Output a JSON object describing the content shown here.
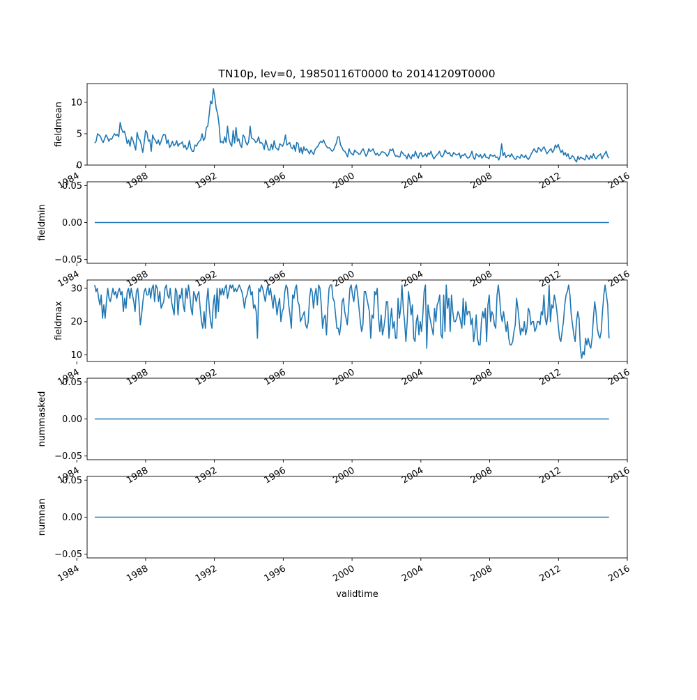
{
  "figure": {
    "title": "TN10p, lev=0, 19850116T0000 to 20141209T0000",
    "line_color": "#1f77b4"
  },
  "chart_data": [
    {
      "type": "line",
      "title": "TN10p, lev=0, 19850116T0000 to 20141209T0000",
      "xlabel": "",
      "ylabel": "fieldmean",
      "x_range": [
        "1985-01-16",
        "2014-12-09"
      ],
      "xlim": [
        1984.6,
        2016.0
      ],
      "ylim": [
        0,
        13
      ],
      "yticks": [
        0,
        5,
        10
      ],
      "ytick_labels": [
        "0",
        "5",
        "10"
      ],
      "xticks": [
        1984,
        1988,
        1992,
        1996,
        2000,
        2004,
        2008,
        2012,
        2016
      ],
      "xtick_labels": [
        "1984",
        "1988",
        "1992",
        "1996",
        "2000",
        "2004",
        "2008",
        "2012",
        "2016"
      ],
      "grid": false,
      "series": [
        {
          "values": [
            3.5,
            3.8,
            5.0,
            4.8,
            4.6,
            4.0,
            3.6,
            4.2,
            4.8,
            4.4,
            3.8,
            4.2,
            4.1,
            4.6,
            5.0,
            4.7,
            4.9,
            4.5,
            6.8,
            5.8,
            5.2,
            5.4,
            4.6,
            3.4,
            4.0,
            3.0,
            4.5,
            4.0,
            3.2,
            2.4,
            5.2,
            4.2,
            4.0,
            3.2,
            2.0,
            3.6,
            5.5,
            5.2,
            3.8,
            4.0,
            2.2,
            4.8,
            4.2,
            3.9,
            3.4,
            4.0,
            3.2,
            3.8,
            4.6,
            4.9,
            4.8,
            3.4,
            4.0,
            2.8,
            3.2,
            3.8,
            3.1,
            3.3,
            3.9,
            3.0,
            3.4,
            3.4,
            3.7,
            2.8,
            3.2,
            2.5,
            2.8,
            3.9,
            2.7,
            2.2,
            2.2,
            3.2,
            3.0,
            3.5,
            3.8,
            4.0,
            5.0,
            3.9,
            4.3,
            6.0,
            6.2,
            8.0,
            10.2,
            9.8,
            12.2,
            10.8,
            9.0,
            8.2,
            6.5,
            3.6,
            3.8,
            3.5,
            4.5,
            3.6,
            6.2,
            4.2,
            3.4,
            3.0,
            5.5,
            3.5,
            6.0,
            3.8,
            4.2,
            3.2,
            2.8,
            4.8,
            4.5,
            3.6,
            3.2,
            3.8,
            6.2,
            4.3,
            4.2,
            4.0,
            3.6,
            3.8,
            4.5,
            3.5,
            3.6,
            3.3,
            2.5,
            4.0,
            3.2,
            2.4,
            2.4,
            3.3,
            2.5,
            3.9,
            2.8,
            2.6,
            2.4,
            3.4,
            3.2,
            3.0,
            3.6,
            4.8,
            3.2,
            3.4,
            3.6,
            2.8,
            2.6,
            3.2,
            2.2,
            3.6,
            3.4,
            2.0,
            2.8,
            1.8,
            2.9,
            2.3,
            2.6,
            2.2,
            1.8,
            2.4,
            2.0,
            1.7,
            2.5,
            2.8,
            3.0,
            3.5,
            3.8,
            3.6,
            4.0,
            3.4,
            3.0,
            2.7,
            2.8,
            2.5,
            2.2,
            2.4,
            3.0,
            3.5,
            4.5,
            4.5,
            3.2,
            2.8,
            2.3,
            2.2,
            1.8,
            1.3,
            2.6,
            2.0,
            1.8,
            1.6,
            2.4,
            2.1,
            2.0,
            1.7,
            1.8,
            2.3,
            2.6,
            2.0,
            1.4,
            1.8,
            2.6,
            2.2,
            2.3,
            2.6,
            2.0,
            1.6,
            1.9,
            1.5,
            1.7,
            2.1,
            2.1,
            2.0,
            1.8,
            1.4,
            1.7,
            2.5,
            2.3,
            2.6,
            1.8,
            1.4,
            1.5,
            1.3,
            1.3,
            2.2,
            1.9,
            1.6,
            1.5,
            1.0,
            1.8,
            1.3,
            1.0,
            1.7,
            1.4,
            2.2,
            1.5,
            1.1,
            1.8,
            2.0,
            1.3,
            1.5,
            1.8,
            1.3,
            1.9,
            1.7,
            2.2,
            1.5,
            1.0,
            1.3,
            1.6,
            1.8,
            2.2,
            1.5,
            1.3,
            1.7,
            2.4,
            2.0,
            1.8,
            2.0,
            1.5,
            1.4,
            2.0,
            1.8,
            1.6,
            1.7,
            1.9,
            1.1,
            1.6,
            1.5,
            1.8,
            1.4,
            1.1,
            1.2,
            1.6,
            2.2,
            1.2,
            0.9,
            1.8,
            1.6,
            1.3,
            1.7,
            1.1,
            1.4,
            1.8,
            1.2,
            1.2,
            1.0,
            1.7,
            1.5,
            1.4,
            1.6,
            1.2,
            1.3,
            0.8,
            1.5,
            3.4,
            1.5,
            2.0,
            1.2,
            1.5,
            1.6,
            1.3,
            1.8,
            1.4,
            1.0,
            0.9,
            1.4,
            1.3,
            1.1,
            1.7,
            1.4,
            1.2,
            1.6,
            1.1,
            0.9,
            1.3,
            1.8,
            2.2,
            2.6,
            2.2,
            2.0,
            2.8,
            2.6,
            2.2,
            2.6,
            2.9,
            2.4,
            1.8,
            2.1,
            2.4,
            2.6,
            2.0,
            2.4,
            3.2,
            2.8,
            3.3,
            2.6,
            2.0,
            2.4,
            1.6,
            2.0,
            1.4,
            1.8,
            1.0,
            1.1,
            1.5,
            1.3,
            0.8,
            0.5,
            1.4,
            0.9,
            1.3,
            1.1,
            1.0,
            0.8,
            1.6,
            1.2,
            0.9,
            1.5,
            1.1,
            1.8,
            1.2,
            1.0,
            1.4,
            1.6,
            1.8,
            1.0,
            1.5,
            1.8,
            2.2,
            1.4,
            1.1
          ]
        }
      ]
    },
    {
      "type": "line",
      "xlabel": "",
      "ylabel": "fieldmin",
      "x_range": [
        "1985-01-16",
        "2014-12-09"
      ],
      "xlim": [
        1984.6,
        2016.0
      ],
      "ylim": [
        -0.055,
        0.055
      ],
      "yticks": [
        -0.05,
        0.0,
        0.05
      ],
      "ytick_labels": [
        "−0.05",
        "0.00",
        "0.05"
      ],
      "xticks": [
        1984,
        1988,
        1992,
        1996,
        2000,
        2004,
        2008,
        2012,
        2016
      ],
      "xtick_labels": [
        "1984",
        "1988",
        "1992",
        "1996",
        "2000",
        "2004",
        "2008",
        "2012",
        "2016"
      ],
      "grid": false,
      "series": [
        {
          "values": [
            0,
            0
          ]
        }
      ]
    },
    {
      "type": "line",
      "xlabel": "",
      "ylabel": "fieldmax",
      "x_range": [
        "1985-01-16",
        "2014-12-09"
      ],
      "xlim": [
        1984.6,
        2016.0
      ],
      "ylim": [
        8.0,
        32.5
      ],
      "yticks": [
        10,
        20,
        30
      ],
      "ytick_labels": [
        "10",
        "20",
        "30"
      ],
      "xticks": [
        1984,
        1988,
        1992,
        1996,
        2000,
        2004,
        2008,
        2012,
        2016
      ],
      "xtick_labels": [
        "1984",
        "1988",
        "1992",
        "1996",
        "2000",
        "2004",
        "2008",
        "2012",
        "2016"
      ],
      "grid": false,
      "series": [
        {
          "values": [
            31,
            29,
            30,
            27,
            25,
            28,
            21,
            25,
            21,
            26,
            30,
            27,
            26,
            28,
            30,
            28,
            29,
            27,
            29,
            30,
            28,
            29,
            23,
            27,
            24,
            29,
            30,
            27,
            30,
            28,
            26,
            23,
            29,
            30,
            26,
            19,
            22,
            26,
            29,
            30,
            28,
            28,
            30,
            27,
            30,
            31,
            26,
            31,
            30,
            26,
            29,
            24,
            25,
            26,
            30,
            31,
            28,
            27,
            30,
            26,
            24,
            22,
            30,
            29,
            22,
            28,
            27,
            30,
            25,
            23,
            30,
            27,
            31,
            28,
            24,
            22,
            29,
            28,
            26,
            28,
            29,
            24,
            20,
            18,
            23,
            18,
            26,
            30,
            24,
            20,
            18,
            25,
            28,
            21,
            30,
            23,
            30,
            28,
            30,
            28,
            30,
            31,
            27,
            29,
            31,
            30,
            31,
            29,
            30,
            29,
            30,
            31,
            30,
            29,
            27,
            24,
            27,
            28,
            30,
            31,
            28,
            29,
            24,
            25,
            23,
            15,
            30,
            29,
            31,
            30,
            28,
            26,
            29,
            31,
            28,
            30,
            27,
            24,
            28,
            26,
            22,
            25,
            27,
            20,
            23,
            24,
            29,
            31,
            30,
            25,
            22,
            18,
            28,
            27,
            30,
            31,
            26,
            25,
            20,
            21,
            22,
            23,
            19,
            18,
            20,
            27,
            30,
            29,
            24,
            28,
            30,
            25,
            31,
            30,
            25,
            18,
            21,
            22,
            16,
            24,
            30,
            31,
            31,
            27,
            26,
            22,
            18,
            18,
            16,
            19,
            26,
            27,
            23,
            21,
            19,
            24,
            30,
            31,
            28,
            26,
            30,
            31,
            28,
            24,
            20,
            17,
            19,
            29,
            29,
            27,
            25,
            23,
            15,
            22,
            21,
            29,
            28,
            30,
            21,
            17,
            22,
            16,
            18,
            21,
            26,
            26,
            15,
            20,
            24,
            18,
            20,
            15,
            15,
            27,
            21,
            24,
            31,
            24,
            20,
            14,
            20,
            29,
            26,
            22,
            25,
            15,
            14,
            20,
            22,
            16,
            20,
            17,
            22,
            29,
            31,
            12,
            25,
            22,
            20,
            18,
            16,
            24,
            20,
            25,
            26,
            28,
            16,
            15,
            28,
            17,
            31,
            24,
            27,
            17,
            28,
            23,
            20,
            20,
            21,
            23,
            22,
            20,
            18,
            27,
            19,
            26,
            22,
            23,
            23,
            19,
            21,
            14,
            17,
            22,
            15,
            13,
            13,
            20,
            23,
            21,
            24,
            14,
            25,
            28,
            20,
            23,
            22,
            19,
            18,
            28,
            31,
            27,
            22,
            20,
            23,
            20,
            17,
            20,
            15,
            13,
            13,
            14,
            17,
            19,
            27,
            24,
            20,
            16,
            18,
            17,
            20,
            16,
            18,
            24,
            23,
            19,
            20,
            20,
            17,
            18,
            20,
            20,
            19,
            23,
            22,
            28,
            21,
            19,
            22,
            31,
            20,
            25,
            24,
            28,
            26,
            23,
            19,
            15,
            14,
            17,
            20,
            25,
            28,
            29,
            31,
            28,
            22,
            19,
            16,
            14,
            20,
            23,
            21,
            12,
            9,
            11,
            10,
            15,
            13,
            15,
            13,
            12,
            15,
            21,
            26,
            23,
            18,
            16,
            15,
            17,
            23,
            28,
            31,
            28,
            25,
            15
          ]
        }
      ]
    },
    {
      "type": "line",
      "xlabel": "",
      "ylabel": "nummasked",
      "x_range": [
        "1985-01-16",
        "2014-12-09"
      ],
      "xlim": [
        1984.6,
        2016.0
      ],
      "ylim": [
        -0.055,
        0.055
      ],
      "yticks": [
        -0.05,
        0.0,
        0.05
      ],
      "ytick_labels": [
        "−0.05",
        "0.00",
        "0.05"
      ],
      "xticks": [
        1984,
        1988,
        1992,
        1996,
        2000,
        2004,
        2008,
        2012,
        2016
      ],
      "xtick_labels": [
        "1984",
        "1988",
        "1992",
        "1996",
        "2000",
        "2004",
        "2008",
        "2012",
        "2016"
      ],
      "grid": false,
      "series": [
        {
          "values": [
            0,
            0
          ]
        }
      ]
    },
    {
      "type": "line",
      "xlabel": "validtime",
      "ylabel": "numnan",
      "x_range": [
        "1985-01-16",
        "2014-12-09"
      ],
      "xlim": [
        1984.6,
        2016.0
      ],
      "ylim": [
        -0.055,
        0.055
      ],
      "yticks": [
        -0.05,
        0.0,
        0.05
      ],
      "ytick_labels": [
        "−0.05",
        "0.00",
        "0.05"
      ],
      "xticks": [
        1984,
        1988,
        1992,
        1996,
        2000,
        2004,
        2008,
        2012,
        2016
      ],
      "xtick_labels": [
        "1984",
        "1988",
        "1992",
        "1996",
        "2000",
        "2004",
        "2008",
        "2012",
        "2016"
      ],
      "grid": false,
      "series": [
        {
          "values": [
            0,
            0
          ]
        }
      ]
    }
  ]
}
